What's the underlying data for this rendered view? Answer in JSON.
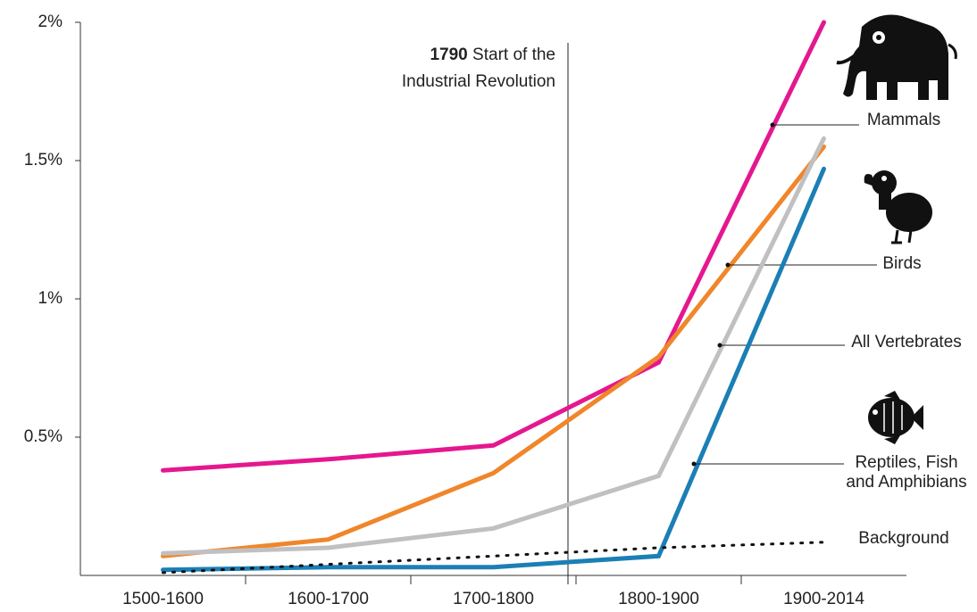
{
  "chart_data": {
    "type": "line",
    "categories": [
      "1500-1600",
      "1600-1700",
      "1700-1800",
      "1800-1900",
      "1900-2014"
    ],
    "series": [
      {
        "name": "Mammals",
        "color": "#e5178f",
        "values": [
          0.38,
          0.42,
          0.47,
          0.77,
          2.0
        ]
      },
      {
        "name": "Birds",
        "color": "#f0862a",
        "values": [
          0.07,
          0.13,
          0.37,
          0.79,
          1.55
        ]
      },
      {
        "name": "All Vertebrates",
        "color": "#c0c0c2",
        "values": [
          0.08,
          0.1,
          0.17,
          0.36,
          1.58
        ]
      },
      {
        "name": "Reptiles, Fish and Amphibians",
        "color": "#1b7fb5",
        "values": [
          0.02,
          0.03,
          0.03,
          0.07,
          1.47
        ]
      },
      {
        "name": "Background",
        "color": "#111111",
        "style": "dotted",
        "values": [
          0.01,
          0.04,
          0.07,
          0.1,
          0.12
        ]
      }
    ],
    "ylim": [
      0,
      2
    ],
    "yticks": [
      {
        "value": 0.5,
        "label": "0.5%"
      },
      {
        "value": 1,
        "label": "1%"
      },
      {
        "value": 1.5,
        "label": "1.5%"
      },
      {
        "value": 2,
        "label": "2%"
      }
    ],
    "annotation": {
      "year": "1790",
      "lines": [
        "Start of the",
        "Industrial Revolution"
      ]
    }
  }
}
